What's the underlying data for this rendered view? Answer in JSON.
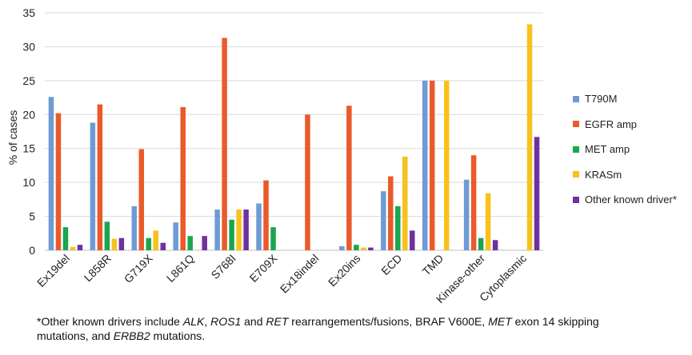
{
  "chart_data": {
    "type": "bar",
    "title": "",
    "xlabel": "",
    "ylabel": "% of cases",
    "ylim": [
      0,
      35
    ],
    "yticks": [
      "0",
      "5",
      "10",
      "15",
      "20",
      "25",
      "30",
      "35"
    ],
    "grid": true,
    "legend_position": "right",
    "categories": [
      "Ex19del",
      "L858R",
      "G719X",
      "L861Q",
      "S768I",
      "E709X",
      "Ex18indel",
      "Ex20ins",
      "ECD",
      "TMD",
      "Kinase-other",
      "Cytoplasmic"
    ],
    "series": [
      {
        "name": "T790M",
        "color": "#6f9bd4",
        "values": [
          22.6,
          18.8,
          6.5,
          4.1,
          6.0,
          6.9,
          0,
          0.6,
          8.7,
          25.0,
          10.4,
          0
        ]
      },
      {
        "name": "EGFR amp",
        "color": "#ea5a2b",
        "values": [
          20.2,
          21.5,
          14.9,
          21.1,
          31.3,
          10.3,
          20.0,
          21.3,
          10.9,
          25.0,
          14.0,
          0
        ]
      },
      {
        "name": "MET amp",
        "color": "#1aa64e",
        "values": [
          3.4,
          4.2,
          1.8,
          2.1,
          4.5,
          3.4,
          0,
          0.8,
          6.5,
          0,
          1.8,
          0
        ]
      },
      {
        "name": "KRASm",
        "color": "#f8c21c",
        "values": [
          0.5,
          1.7,
          2.9,
          0,
          6.0,
          0,
          0,
          0.4,
          13.8,
          25.0,
          8.4,
          33.3
        ]
      },
      {
        "name": "Other known driver*",
        "color": "#7030a0",
        "values": [
          0.8,
          1.8,
          1.1,
          2.1,
          6.0,
          0,
          0,
          0.4,
          2.9,
          0,
          1.5,
          16.7
        ]
      }
    ]
  },
  "footnote": {
    "line1_prefix": "*Other known drivers include ",
    "alk": "ALK",
    "comma1": ", ",
    "ros1": "ROS1",
    "and1": " and ",
    "ret": "RET",
    "middle": " rearrangements/fusions, BRAF V600E, ",
    "met": "MET",
    "exon": " exon 14 skipping",
    "line2_prefix": "mutations, and ",
    "erbb2": "ERBB2",
    "line2_suffix": " mutations."
  }
}
